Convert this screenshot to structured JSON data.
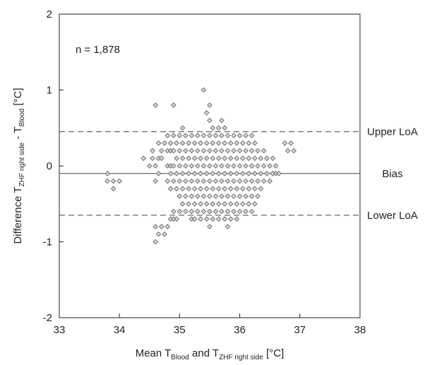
{
  "chart_data": {
    "type": "scatter",
    "annotation": "n = 1,878",
    "xlabel": {
      "parts": [
        "Mean T",
        "Blood",
        " and T",
        "ZHF right side",
        " [°C]"
      ]
    },
    "ylabel": {
      "parts": [
        "Difference T",
        "ZHF right side",
        " - T",
        "Blood",
        " [°C]"
      ]
    },
    "xlim": [
      33,
      38
    ],
    "ylim": [
      -2,
      2
    ],
    "xticks": [
      "33",
      "34",
      "35",
      "36",
      "37",
      "38"
    ],
    "yticks": [
      "-2",
      "-1",
      "0",
      "1",
      "2"
    ],
    "grid": false,
    "reference_lines": [
      {
        "label": "Upper LoA",
        "y": 0.45,
        "style": "dashed"
      },
      {
        "label": "Bias",
        "y": -0.1,
        "style": "solid"
      },
      {
        "label": "Lower LoA",
        "y": -0.65,
        "style": "dashed"
      }
    ],
    "marker": {
      "shape": "diamond",
      "fill": "#d9d9d9",
      "stroke": "#555555"
    },
    "columns": [
      {
        "x": 33.8,
        "y": [
          -0.2,
          -0.1
        ]
      },
      {
        "x": 33.9,
        "y": [
          -0.2,
          -0.3
        ]
      },
      {
        "x": 34.0,
        "y": [
          -0.2
        ]
      },
      {
        "x": 34.4,
        "y": [
          0.1
        ]
      },
      {
        "x": 34.5,
        "y": [
          0.0
        ]
      },
      {
        "x": 34.55,
        "y": [
          0.2,
          0.1
        ]
      },
      {
        "x": 34.6,
        "y": [
          0.8,
          0.0,
          -0.2,
          -0.8,
          -1.0
        ]
      },
      {
        "x": 34.65,
        "y": [
          0.3,
          0.1,
          -0.1,
          -0.9
        ]
      },
      {
        "x": 34.7,
        "y": [
          0.2,
          0.1,
          -0.8
        ]
      },
      {
        "x": 34.75,
        "y": [
          0.3,
          -0.9
        ]
      },
      {
        "x": 34.8,
        "y": [
          0.4,
          0.2,
          0.0,
          -0.2,
          -0.8
        ]
      },
      {
        "x": 34.85,
        "y": [
          0.3,
          0.2,
          0.0,
          -0.1,
          -0.3,
          -0.7
        ]
      },
      {
        "x": 34.9,
        "y": [
          0.8,
          0.4,
          0.2,
          0.0,
          -0.2,
          -0.6,
          -0.7
        ]
      },
      {
        "x": 34.95,
        "y": [
          0.3,
          0.1,
          -0.1,
          -0.3,
          -0.7
        ]
      },
      {
        "x": 35.0,
        "y": [
          0.4,
          0.2,
          0.0,
          -0.2,
          -0.4,
          -0.6
        ]
      },
      {
        "x": 35.05,
        "y": [
          0.5,
          0.3,
          0.1,
          -0.1,
          -0.3,
          -0.5
        ]
      },
      {
        "x": 35.1,
        "y": [
          0.4,
          0.2,
          0.0,
          -0.2,
          -0.4,
          -0.6
        ]
      },
      {
        "x": 35.15,
        "y": [
          0.3,
          0.1,
          -0.1,
          -0.3,
          -0.5
        ]
      },
      {
        "x": 35.2,
        "y": [
          0.4,
          0.2,
          0.0,
          -0.2,
          -0.4,
          -0.6,
          -0.7
        ]
      },
      {
        "x": 35.25,
        "y": [
          0.3,
          0.1,
          -0.1,
          -0.3,
          -0.5,
          -0.7
        ]
      },
      {
        "x": 35.3,
        "y": [
          0.4,
          0.2,
          0.0,
          -0.2,
          -0.4,
          -0.6
        ]
      },
      {
        "x": 35.35,
        "y": [
          0.3,
          0.1,
          -0.1,
          -0.3,
          -0.5,
          -0.7
        ]
      },
      {
        "x": 35.4,
        "y": [
          1.0,
          0.4,
          0.2,
          0.0,
          -0.2,
          -0.4,
          -0.6
        ]
      },
      {
        "x": 35.45,
        "y": [
          0.7,
          0.3,
          0.1,
          -0.1,
          -0.3,
          -0.5,
          -0.7
        ]
      },
      {
        "x": 35.5,
        "y": [
          0.8,
          0.6,
          0.4,
          0.2,
          0.0,
          -0.2,
          -0.4,
          -0.6,
          -0.8
        ]
      },
      {
        "x": 35.55,
        "y": [
          0.5,
          0.3,
          0.1,
          -0.1,
          -0.3,
          -0.5,
          -0.7
        ]
      },
      {
        "x": 35.6,
        "y": [
          0.4,
          0.2,
          0.0,
          -0.2,
          -0.4,
          -0.6
        ]
      },
      {
        "x": 35.65,
        "y": [
          0.5,
          0.3,
          0.1,
          -0.1,
          -0.3,
          -0.5,
          -0.7
        ]
      },
      {
        "x": 35.7,
        "y": [
          0.6,
          0.4,
          0.2,
          0.0,
          -0.2,
          -0.4,
          -0.6
        ]
      },
      {
        "x": 35.75,
        "y": [
          0.5,
          0.3,
          0.1,
          -0.1,
          -0.3,
          -0.5,
          -0.7
        ]
      },
      {
        "x": 35.8,
        "y": [
          0.4,
          0.2,
          0.0,
          -0.2,
          -0.4,
          -0.6,
          -0.8
        ]
      },
      {
        "x": 35.85,
        "y": [
          0.3,
          0.1,
          -0.1,
          -0.3,
          -0.5,
          -0.7
        ]
      },
      {
        "x": 35.9,
        "y": [
          0.4,
          0.2,
          0.0,
          -0.2,
          -0.4,
          -0.6
        ]
      },
      {
        "x": 35.95,
        "y": [
          0.3,
          0.1,
          -0.1,
          -0.3,
          -0.5,
          -0.7
        ]
      },
      {
        "x": 36.0,
        "y": [
          0.4,
          0.2,
          0.0,
          -0.2,
          -0.4,
          -0.6
        ]
      },
      {
        "x": 36.05,
        "y": [
          0.3,
          0.1,
          -0.1,
          -0.3,
          -0.5
        ]
      },
      {
        "x": 36.1,
        "y": [
          0.4,
          0.2,
          0.0,
          -0.2,
          -0.4,
          -0.6
        ]
      },
      {
        "x": 36.15,
        "y": [
          0.3,
          0.1,
          -0.1,
          -0.3,
          -0.5
        ]
      },
      {
        "x": 36.2,
        "y": [
          0.4,
          0.2,
          0.0,
          -0.2,
          -0.4,
          -0.6
        ]
      },
      {
        "x": 36.25,
        "y": [
          0.3,
          0.1,
          -0.1,
          -0.3,
          -0.5
        ]
      },
      {
        "x": 36.3,
        "y": [
          0.2,
          0.0,
          -0.2,
          -0.4
        ]
      },
      {
        "x": 36.35,
        "y": [
          0.1,
          -0.1,
          -0.3
        ]
      },
      {
        "x": 36.4,
        "y": [
          0.2,
          0.0,
          -0.2
        ]
      },
      {
        "x": 36.45,
        "y": [
          0.1,
          -0.1
        ]
      },
      {
        "x": 36.5,
        "y": [
          0.0,
          -0.2
        ]
      },
      {
        "x": 36.55,
        "y": [
          0.1,
          -0.1
        ]
      },
      {
        "x": 36.6,
        "y": [
          0.0,
          -0.1
        ]
      },
      {
        "x": 36.65,
        "y": [
          -0.1
        ]
      },
      {
        "x": 36.75,
        "y": [
          0.3
        ]
      },
      {
        "x": 36.8,
        "y": [
          0.2
        ]
      },
      {
        "x": 36.85,
        "y": [
          0.3
        ]
      },
      {
        "x": 36.9,
        "y": [
          0.2
        ]
      }
    ]
  }
}
